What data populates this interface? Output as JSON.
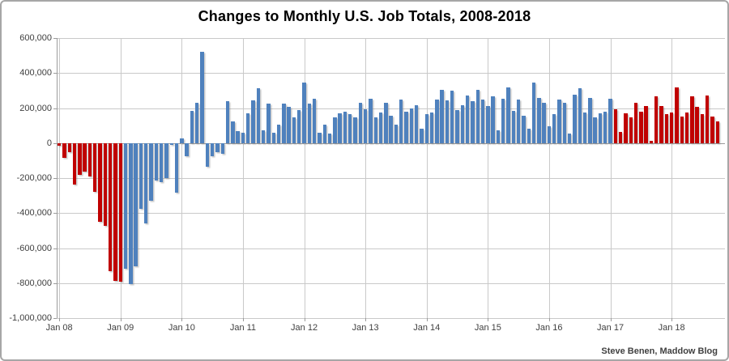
{
  "title": "Changes to Monthly U.S. Job Totals, 2008-2018",
  "attribution": "Steve Benen, Maddow Blog",
  "chart_data": {
    "type": "bar",
    "title": "Changes to Monthly U.S. Job Totals, 2008-2018",
    "xlabel": "",
    "ylabel": "",
    "ylim": [
      -1000000,
      600000
    ],
    "y_gridline_step": 200000,
    "grid": "on",
    "legend": "none",
    "y_tick_labels": [
      "600,000",
      "400,000",
      "200,000",
      "0",
      "-200,000",
      "-400,000",
      "-600,000",
      "-800,000",
      "-1,000,000"
    ],
    "x_tick_labels": [
      "Jan 08",
      "Jan 09",
      "Jan 10",
      "Jan 11",
      "Jan 12",
      "Jan 13",
      "Jan 14",
      "Jan 15",
      "Jan 16",
      "Jan 17",
      "Jan 18"
    ],
    "units": "jobs per month",
    "month_order": "each year array runs January through December",
    "colors": {
      "republican_red": "#C00000",
      "democratic_blue": "#4F81BD"
    },
    "color_spans": "red Jan 2008 - Jan 2009, blue Feb 2009 - Jan 2017, red Feb 2017 - Oct 2018",
    "red_until_index": 12,
    "red_from_index": 109,
    "series": [
      {
        "year": 2008,
        "values": [
          -15000,
          -85000,
          -50000,
          -235000,
          -180000,
          -165000,
          -190000,
          -280000,
          -450000,
          -475000,
          -730000,
          -785000
        ]
      },
      {
        "year": 2009,
        "values": [
          -790000,
          -720000,
          -805000,
          -705000,
          -375000,
          -460000,
          -330000,
          -215000,
          -225000,
          -200000,
          -10000,
          -285000
        ]
      },
      {
        "year": 2010,
        "values": [
          25000,
          -75000,
          185000,
          230000,
          520000,
          -135000,
          -75000,
          -50000,
          -60000,
          240000,
          125000,
          70000
        ]
      },
      {
        "year": 2011,
        "values": [
          60000,
          170000,
          245000,
          315000,
          75000,
          225000,
          60000,
          105000,
          225000,
          205000,
          145000,
          190000
        ]
      },
      {
        "year": 2012,
        "values": [
          345000,
          225000,
          255000,
          60000,
          105000,
          55000,
          145000,
          170000,
          180000,
          165000,
          145000,
          230000
        ]
      },
      {
        "year": 2013,
        "values": [
          195000,
          255000,
          145000,
          175000,
          230000,
          155000,
          105000,
          250000,
          180000,
          200000,
          215000,
          80000
        ]
      },
      {
        "year": 2014,
        "values": [
          165000,
          175000,
          250000,
          305000,
          245000,
          300000,
          190000,
          215000,
          270000,
          240000,
          305000,
          250000
        ]
      },
      {
        "year": 2015,
        "values": [
          210000,
          265000,
          75000,
          255000,
          320000,
          185000,
          250000,
          155000,
          80000,
          345000,
          260000,
          230000
        ]
      },
      {
        "year": 2016,
        "values": [
          95000,
          165000,
          250000,
          230000,
          55000,
          275000,
          315000,
          175000,
          260000,
          145000,
          170000,
          180000
        ]
      },
      {
        "year": 2017,
        "values": [
          255000,
          195000,
          65000,
          170000,
          145000,
          230000,
          180000,
          210000,
          15000,
          265000,
          210000,
          165000
        ]
      },
      {
        "year": 2018,
        "values": [
          175000,
          320000,
          150000,
          175000,
          265000,
          205000,
          165000,
          270000,
          150000,
          125000
        ]
      }
    ]
  }
}
